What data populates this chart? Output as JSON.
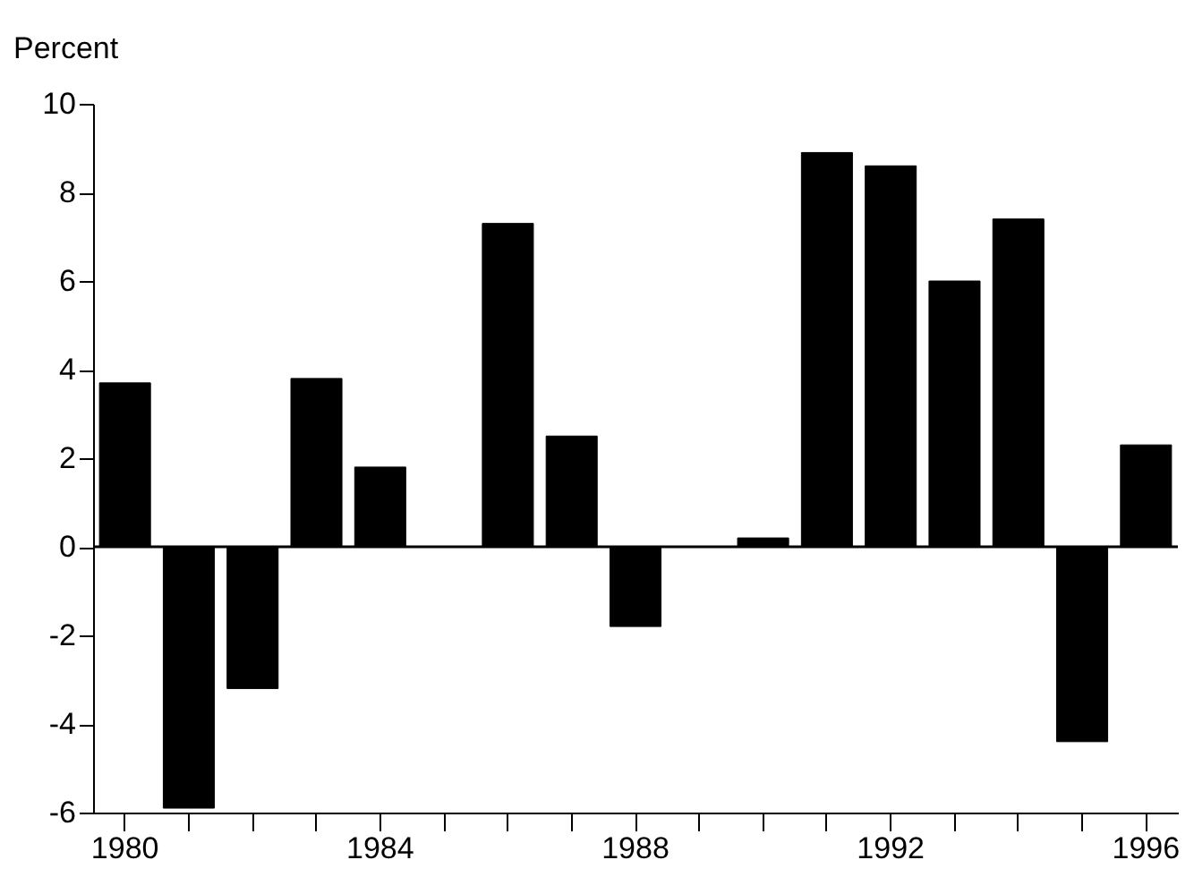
{
  "chart_data": {
    "type": "bar",
    "ylabel": "Percent",
    "categories": [
      "1980",
      null,
      null,
      null,
      "1984",
      null,
      null,
      null,
      "1988",
      null,
      null,
      null,
      "1992",
      null,
      null,
      null,
      "1996"
    ],
    "values": [
      3.7,
      -5.9,
      -3.2,
      3.8,
      1.8,
      null,
      7.3,
      2.5,
      -1.8,
      null,
      0.2,
      8.9,
      8.6,
      6.0,
      7.4,
      -4.4,
      2.3
    ],
    "color": "#000000",
    "ylim": [
      -6,
      10
    ],
    "yticks": [
      -6,
      -4,
      -2,
      0,
      2,
      4,
      6,
      8,
      10
    ],
    "ref_lines": [
      {
        "axis": "y",
        "value": 0,
        "color": "#000000"
      }
    ],
    "grid": false
  }
}
